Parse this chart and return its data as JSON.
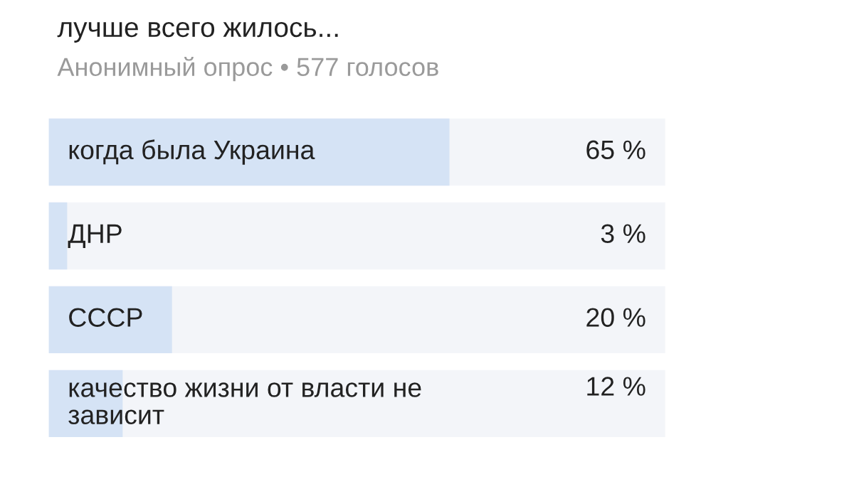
{
  "chart_data": {
    "type": "bar",
    "orientation": "horizontal",
    "title": "лучше всего жилось...",
    "subtitle": "Анонимный опрос • 577 голосов",
    "categories": [
      "когда была Украина",
      "ДНР",
      "СССР",
      "качество жизни от власти не\nзависит"
    ],
    "values": [
      65,
      3,
      20,
      12
    ],
    "value_labels": [
      "65 %",
      "3 %",
      "20 %",
      "12 %"
    ],
    "color": "#d5e3f5",
    "xlim": [
      0,
      100
    ],
    "tick_labels": "y"
  }
}
